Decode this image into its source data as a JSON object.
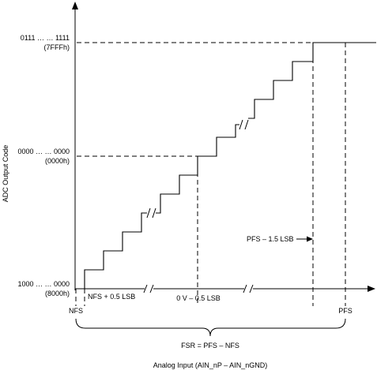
{
  "diagram": {
    "y_axis_label": "ADC Output Code",
    "x_axis_label": "Analog Input (AIN_nP – AIN_nGND)",
    "codes": {
      "top": {
        "binary": "0111 … … 1111",
        "hex": "(7FFFh)"
      },
      "mid": {
        "binary": "0000 … … 0000",
        "hex": "(0000h)"
      },
      "bottom": {
        "binary": "1000 … … 0000",
        "hex": "(8000h)"
      }
    },
    "annotations": {
      "nfs_step": "NFS + 0.5 LSB",
      "zero_step": "0 V – 0.5 LSB",
      "pfs_step": "PFS – 1.5 LSB",
      "nfs": "NFS",
      "pfs": "PFS",
      "fsr": "FSR = PFS – NFS"
    }
  }
}
